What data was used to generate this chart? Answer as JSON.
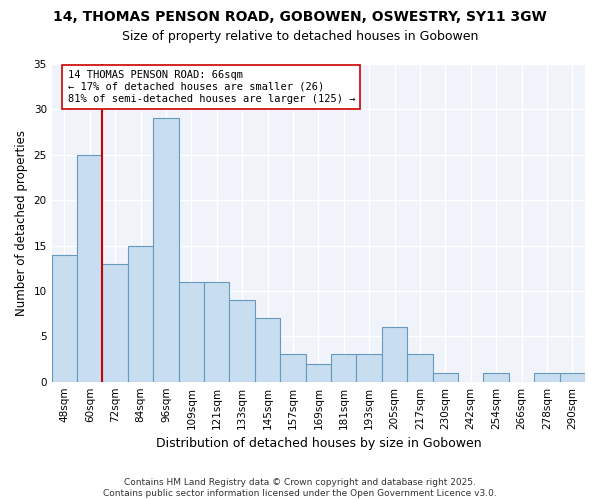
{
  "title1": "14, THOMAS PENSON ROAD, GOBOWEN, OSWESTRY, SY11 3GW",
  "title2": "Size of property relative to detached houses in Gobowen",
  "xlabel": "Distribution of detached houses by size in Gobowen",
  "ylabel": "Number of detached properties",
  "categories": [
    "48sqm",
    "60sqm",
    "72sqm",
    "84sqm",
    "96sqm",
    "109sqm",
    "121sqm",
    "133sqm",
    "145sqm",
    "157sqm",
    "169sqm",
    "181sqm",
    "193sqm",
    "205sqm",
    "217sqm",
    "230sqm",
    "242sqm",
    "254sqm",
    "266sqm",
    "278sqm",
    "290sqm"
  ],
  "values": [
    14,
    25,
    13,
    15,
    29,
    11,
    11,
    9,
    7,
    3,
    2,
    3,
    3,
    6,
    3,
    1,
    0,
    1,
    0,
    1,
    1
  ],
  "bar_color": "#c8ddf0",
  "bar_edge_color": "#6699bb",
  "vline_color": "#cc0000",
  "vline_pos": 1.5,
  "annotation_text": "14 THOMAS PENSON ROAD: 66sqm\n← 17% of detached houses are smaller (26)\n81% of semi-detached houses are larger (125) →",
  "annotation_box_facecolor": "#ffffff",
  "annotation_box_edgecolor": "#cc0000",
  "ylim": [
    0,
    35
  ],
  "yticks": [
    0,
    5,
    10,
    15,
    20,
    25,
    30,
    35
  ],
  "background_color": "#ffffff",
  "plot_bg_color": "#f0f4fa",
  "footer_text": "Contains HM Land Registry data © Crown copyright and database right 2025.\nContains public sector information licensed under the Open Government Licence v3.0.",
  "title1_fontsize": 10,
  "title2_fontsize": 9,
  "xlabel_fontsize": 9,
  "ylabel_fontsize": 8.5,
  "tick_fontsize": 7.5,
  "annotation_fontsize": 7.5,
  "footer_fontsize": 6.5
}
